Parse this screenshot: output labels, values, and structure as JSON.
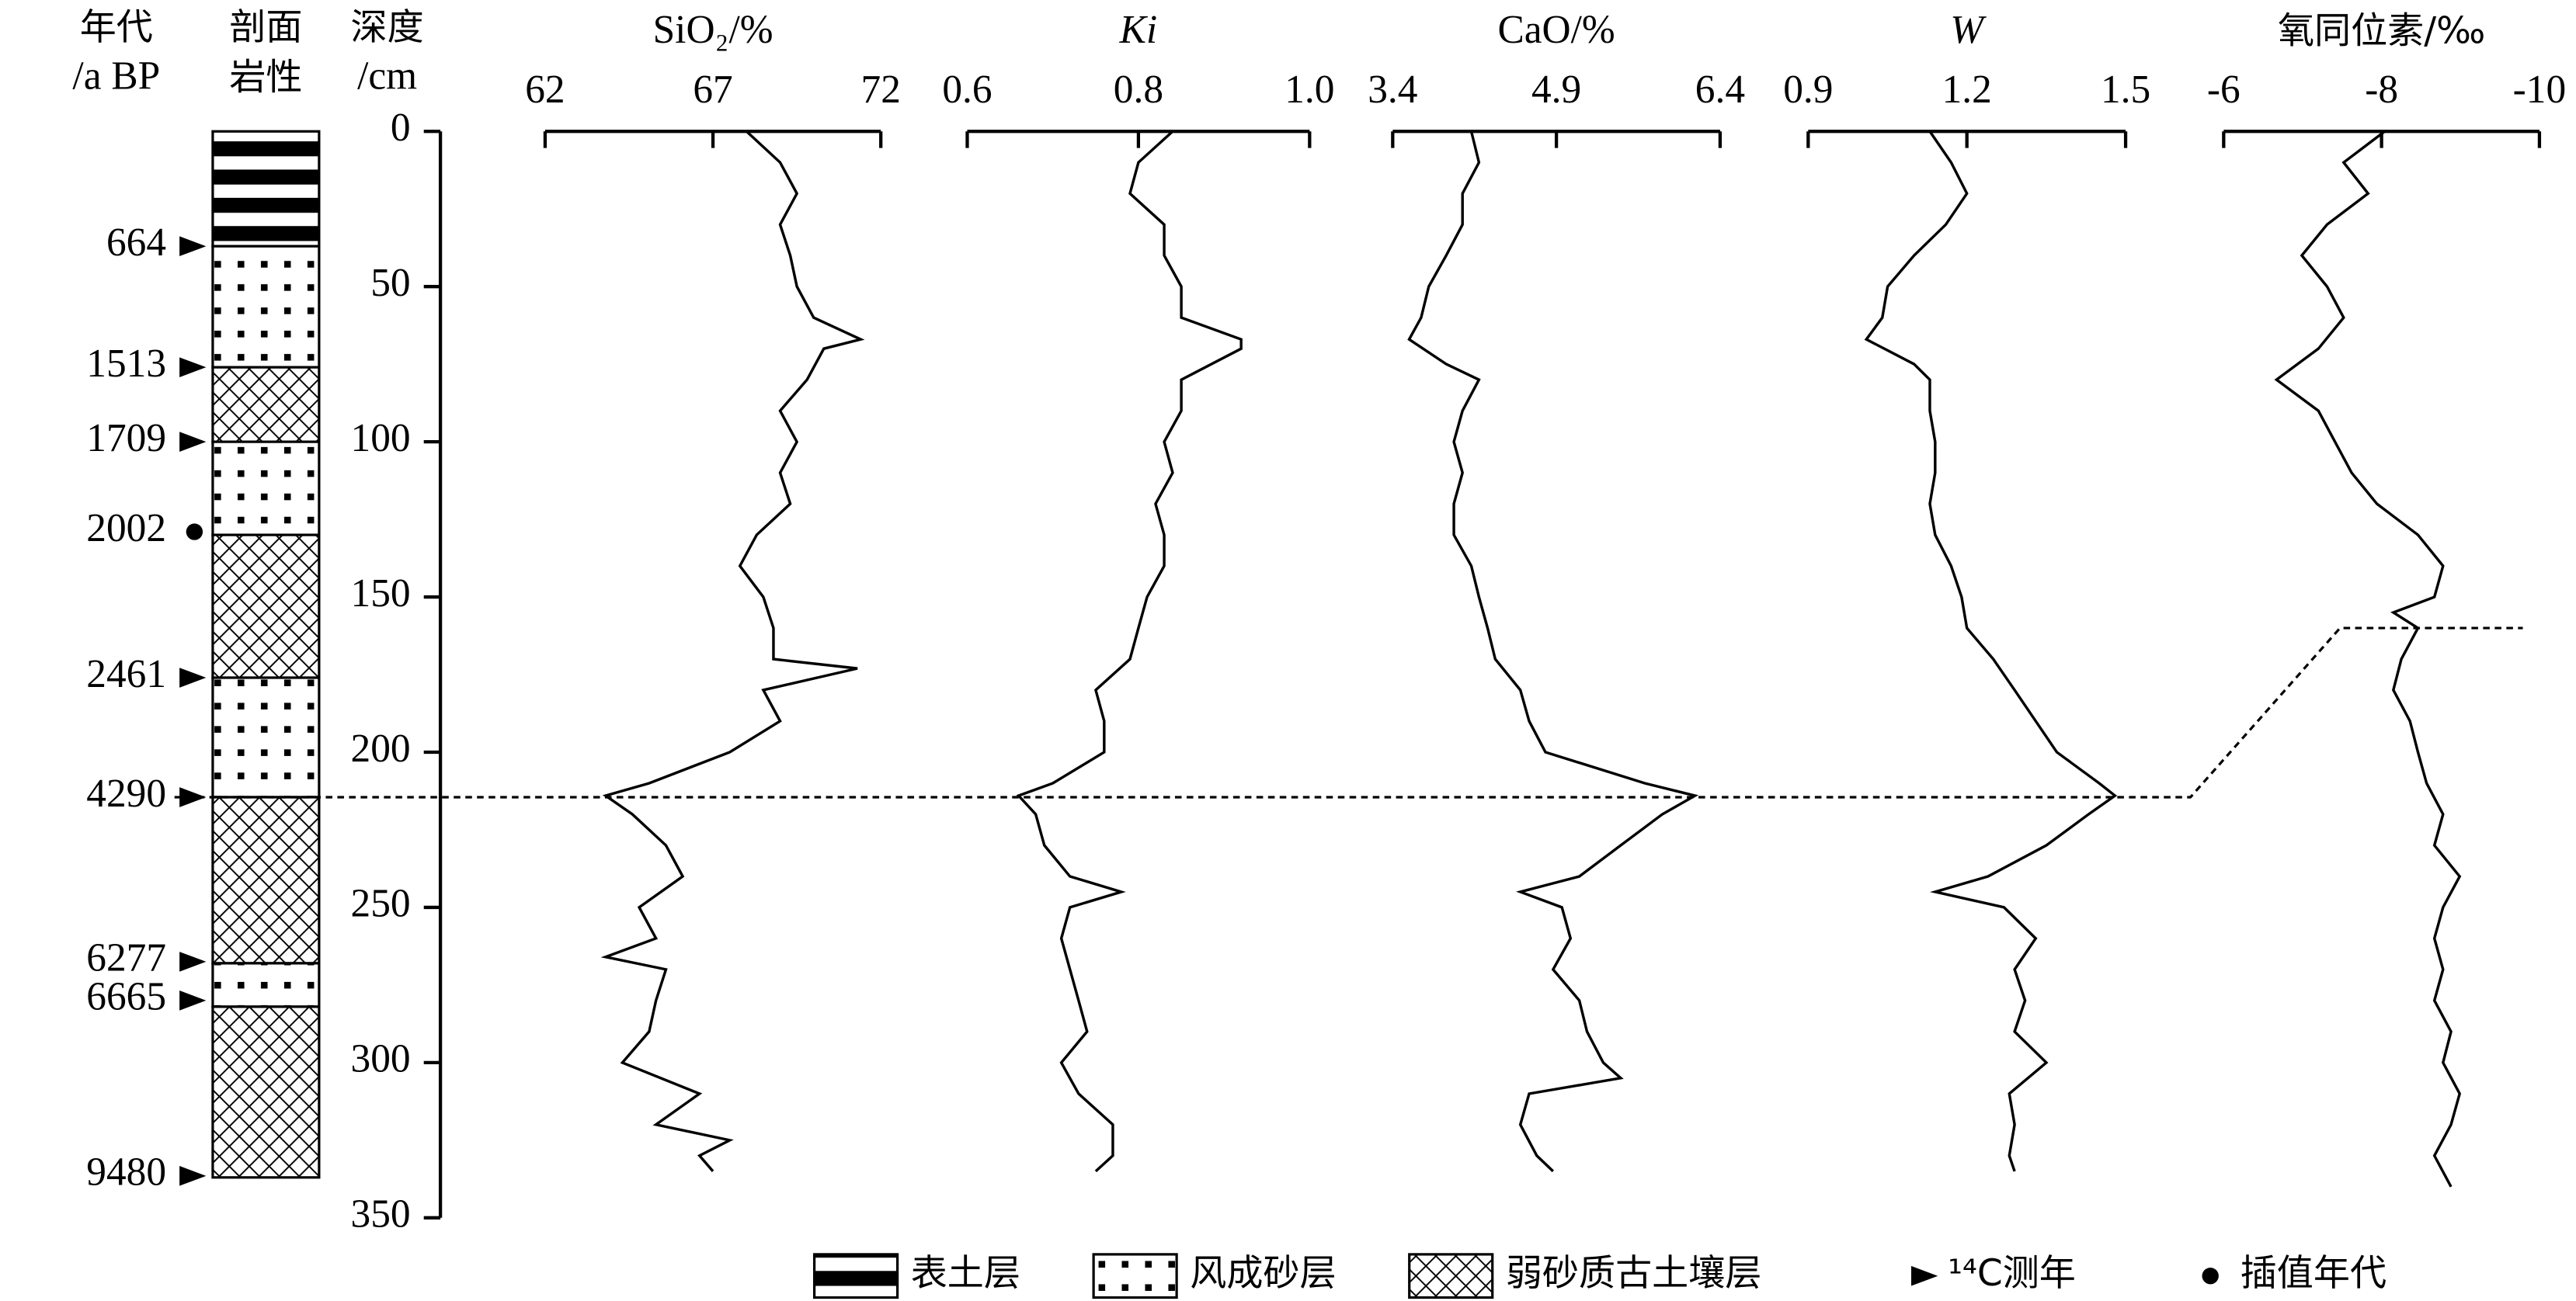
{
  "chart_data": {
    "type": "depth-profile",
    "age_header": [
      "年代",
      "/a BP"
    ],
    "lithology_header": [
      "剖面",
      "岩性"
    ],
    "ylabel": [
      "深度",
      "/cm"
    ],
    "ylim": [
      0,
      350
    ],
    "yticks": [
      0,
      50,
      100,
      150,
      200,
      250,
      300,
      350
    ],
    "line_color": "#000000",
    "layers": [
      {
        "top": 0,
        "bottom": 37,
        "lithology": 0
      },
      {
        "top": 37,
        "bottom": 76,
        "lithology": 1
      },
      {
        "top": 76,
        "bottom": 100,
        "lithology": 2
      },
      {
        "top": 100,
        "bottom": 130,
        "lithology": 1
      },
      {
        "top": 130,
        "bottom": 176,
        "lithology": 2
      },
      {
        "top": 176,
        "bottom": 214.5,
        "lithology": 1
      },
      {
        "top": 214.5,
        "bottom": 268,
        "lithology": 2
      },
      {
        "top": 268,
        "bottom": 282,
        "lithology": 1
      },
      {
        "top": 282,
        "bottom": 337,
        "lithology": 2
      }
    ],
    "ages": [
      {
        "label": 664,
        "depth": 37,
        "dated": true
      },
      {
        "label": 1513,
        "depth": 76,
        "dated": true
      },
      {
        "label": 1709,
        "depth": 100,
        "dated": true
      },
      {
        "label": 2002,
        "depth": 129,
        "dated": false
      },
      {
        "label": 2461,
        "depth": 176,
        "dated": true
      },
      {
        "label": 4290,
        "depth": 214.5,
        "dated": true
      },
      {
        "label": 6277,
        "depth": 267.5,
        "dated": true
      },
      {
        "label": 6665,
        "depth": 280,
        "dated": true
      },
      {
        "label": 9480,
        "depth": 336.5,
        "dated": true
      }
    ],
    "correlation_depths": [
      214.5,
      160
    ],
    "series": [
      {
        "name": "SiO₂/%",
        "italic": false,
        "xlim": [
          62,
          72
        ],
        "xticks": [
          62,
          67,
          72
        ],
        "depth": [
          0,
          10,
          20,
          30,
          40,
          50,
          60,
          67,
          70,
          80,
          90,
          100,
          110,
          120,
          130,
          140,
          150,
          160,
          170,
          173,
          180,
          190,
          200,
          210,
          214,
          220,
          230,
          240,
          250,
          260,
          266,
          270,
          280,
          290,
          300,
          310,
          320,
          325,
          330,
          335
        ],
        "values": [
          68.0,
          69.0,
          69.5,
          69.0,
          69.3,
          69.5,
          70.0,
          71.4,
          70.3,
          69.8,
          69.0,
          69.5,
          69.0,
          69.3,
          68.3,
          67.8,
          68.5,
          68.8,
          68.8,
          71.3,
          68.5,
          69.0,
          67.5,
          65.1,
          63.8,
          64.6,
          65.6,
          66.1,
          64.8,
          65.3,
          63.8,
          65.6,
          65.3,
          65.1,
          64.3,
          66.6,
          65.3,
          67.5,
          66.6,
          67.0
        ]
      },
      {
        "name": "Ki",
        "italic": true,
        "xlim": [
          0.6,
          1
        ],
        "xticks": [
          0.6,
          0.8,
          {
            "value": 1,
            "label": "1.0"
          }
        ],
        "depth": [
          0,
          10,
          20,
          30,
          40,
          50,
          60,
          67,
          70,
          80,
          90,
          100,
          110,
          120,
          130,
          140,
          150,
          160,
          170,
          180,
          190,
          200,
          210,
          214,
          220,
          230,
          240,
          245,
          250,
          260,
          270,
          280,
          290,
          300,
          310,
          320,
          330,
          335
        ],
        "values": [
          0.84,
          0.8,
          0.79,
          0.83,
          0.83,
          0.85,
          0.85,
          0.92,
          0.92,
          0.85,
          0.85,
          0.83,
          0.84,
          0.82,
          0.83,
          0.83,
          0.81,
          0.8,
          0.79,
          0.75,
          0.76,
          0.76,
          0.7,
          0.66,
          0.68,
          0.69,
          0.72,
          0.78,
          0.72,
          0.71,
          0.72,
          0.73,
          0.74,
          0.71,
          0.73,
          0.77,
          0.77,
          0.75
        ]
      },
      {
        "name": "CaO/%",
        "italic": false,
        "xlim": [
          3.4,
          6.4
        ],
        "xticks": [
          3.4,
          4.9,
          6.4
        ],
        "depth": [
          0,
          10,
          20,
          30,
          40,
          50,
          60,
          67,
          75,
          80,
          90,
          100,
          110,
          120,
          130,
          140,
          150,
          160,
          170,
          180,
          190,
          200,
          210,
          214,
          220,
          230,
          240,
          245,
          250,
          260,
          270,
          280,
          290,
          300,
          305,
          310,
          320,
          330,
          335
        ],
        "values": [
          4.12,
          4.19,
          4.04,
          4.04,
          3.89,
          3.73,
          3.66,
          3.55,
          3.89,
          4.19,
          4.04,
          3.96,
          4.04,
          3.96,
          3.96,
          4.12,
          4.19,
          4.27,
          4.34,
          4.57,
          4.65,
          4.8,
          5.71,
          6.17,
          5.87,
          5.49,
          5.11,
          4.57,
          4.95,
          5.03,
          4.87,
          5.11,
          5.18,
          5.33,
          5.49,
          4.65,
          4.57,
          4.72,
          4.87
        ]
      },
      {
        "name": "W",
        "italic": true,
        "xlim": [
          0.9,
          1.5
        ],
        "xticks": [
          0.9,
          1.2,
          1.5
        ],
        "depth": [
          0,
          10,
          20,
          30,
          40,
          50,
          60,
          67,
          75,
          80,
          90,
          100,
          110,
          120,
          130,
          140,
          150,
          160,
          170,
          180,
          190,
          200,
          210,
          214,
          220,
          230,
          240,
          245,
          250,
          260,
          270,
          280,
          290,
          300,
          310,
          320,
          330,
          335
        ],
        "values": [
          1.13,
          1.17,
          1.2,
          1.16,
          1.1,
          1.05,
          1.04,
          1.01,
          1.1,
          1.13,
          1.13,
          1.14,
          1.14,
          1.13,
          1.14,
          1.17,
          1.19,
          1.2,
          1.25,
          1.29,
          1.33,
          1.37,
          1.45,
          1.48,
          1.43,
          1.35,
          1.24,
          1.14,
          1.27,
          1.33,
          1.29,
          1.31,
          1.29,
          1.35,
          1.28,
          1.29,
          1.28,
          1.29
        ]
      },
      {
        "name": "氧同位素/‰",
        "italic": false,
        "xlim": [
          -6,
          -10
        ],
        "xticks": [
          -6,
          -8,
          -10
        ],
        "depth": [
          0,
          10,
          20,
          30,
          40,
          50,
          60,
          70,
          80,
          90,
          100,
          110,
          120,
          130,
          140,
          150,
          155,
          160,
          170,
          180,
          190,
          200,
          210,
          220,
          230,
          240,
          250,
          260,
          270,
          280,
          290,
          300,
          310,
          320,
          330,
          340
        ],
        "values": [
          -8.04,
          -7.52,
          -7.83,
          -7.31,
          -6.99,
          -7.31,
          -7.52,
          -7.2,
          -6.67,
          -7.2,
          -7.41,
          -7.62,
          -7.94,
          -8.46,
          -8.78,
          -8.67,
          -8.15,
          -8.46,
          -8.25,
          -8.15,
          -8.36,
          -8.46,
          -8.57,
          -8.78,
          -8.67,
          -8.99,
          -8.78,
          -8.67,
          -8.78,
          -8.67,
          -8.88,
          -8.78,
          -8.99,
          -8.88,
          -8.67,
          -8.88
        ]
      }
    ],
    "legend": [
      "表土层",
      "风成砂层",
      "弱砂质古土壤层",
      "¹⁴C测年",
      "插值年代"
    ]
  }
}
